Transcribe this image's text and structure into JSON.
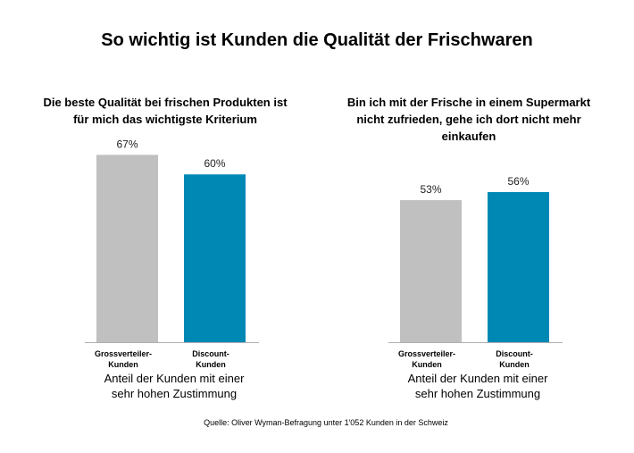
{
  "title": "So wichtig ist Kunden die Qualität der Frischwaren",
  "source": "Quelle: Oliver Wyman-Befragung unter 1'052 Kunden in der Schweiz",
  "chart_data": [
    {
      "type": "bar",
      "title": "Die beste Qualität bei frischen Produkten ist für mich das wichtigste Kriterium",
      "categories": [
        "Grossverteiler-Kunden",
        "Discount-Kunden"
      ],
      "values": [
        67,
        60
      ],
      "value_labels": [
        "67%",
        "60%"
      ],
      "colors": [
        "#c0c0c0",
        "#0088b5"
      ],
      "x_label": "Anteil der Kunden mit einer sehr hohen Zustimmung"
    },
    {
      "type": "bar",
      "title": "Bin ich mit der Frische in einem Supermarkt nicht zufrieden, gehe ich dort nicht mehr einkaufen",
      "categories": [
        "Grossverteiler-Kunden",
        "Discount-Kunden"
      ],
      "values": [
        53,
        56
      ],
      "value_labels": [
        "53%",
        "56%"
      ],
      "colors": [
        "#c0c0c0",
        "#0088b5"
      ],
      "x_label": "Anteil der Kunden mit einer sehr hohen Zustimmung"
    }
  ]
}
